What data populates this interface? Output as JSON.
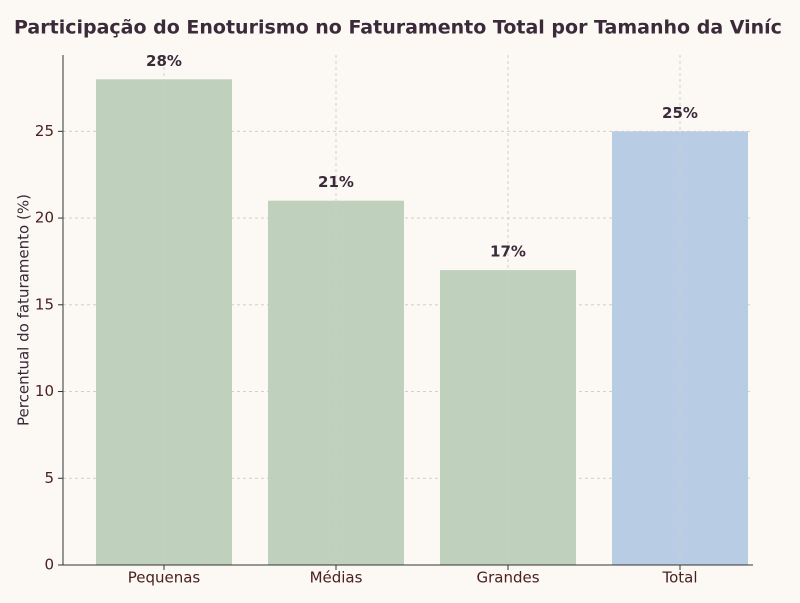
{
  "chart_data": {
    "type": "bar",
    "title": "Participação do Enoturismo no Faturamento Total por Tamanho da Viníc",
    "y_label": "Percentual do faturamento (%)",
    "categories": [
      "Pequenas",
      "Médias",
      "Grandes",
      "Total"
    ],
    "values": [
      28,
      21,
      17,
      25
    ],
    "value_labels": [
      "28%",
      "21%",
      "17%",
      "25%"
    ],
    "colors": [
      "#bfd0bc",
      "#bfd0bc",
      "#bfd0bc",
      "#b8cce4"
    ],
    "ylim": [
      0,
      29.4
    ],
    "yticks": [
      0,
      5,
      10,
      15,
      20,
      25
    ],
    "grid": true
  }
}
